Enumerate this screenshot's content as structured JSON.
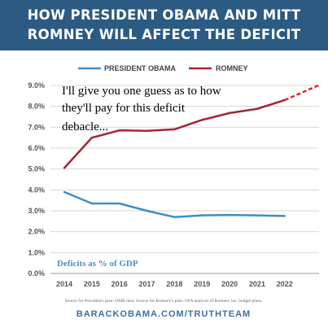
{
  "header": {
    "line1": "HOW PRESIDENT OBAMA AND MITT",
    "line2": "ROMNEY WILL AFFECT THE DEFICIT"
  },
  "annotation": {
    "line1": "I'll give you one guess as to how",
    "line2": "they'll pay for this deficit",
    "line3": "debacle..."
  },
  "source_note": "Source for President's plan: OMB data. Source for Romney's plan: OFA analysis of Romney tax, budget plans.",
  "footer": "BARACKOBAMA.COM/TRUTHTEAM",
  "colors": {
    "header_bg": "#2b5a82",
    "obama": "#3d8fc4",
    "romney": "#a52335",
    "grid": "#d7d7d7"
  },
  "chart_data": {
    "type": "line",
    "inner_label": "Deficits as % of GDP",
    "x": [
      "2014",
      "2015",
      "2016",
      "2017",
      "2018",
      "2019",
      "2020",
      "2021",
      "2022"
    ],
    "yticks": [
      "0.0%",
      "1.0%",
      "2.0%",
      "3.0%",
      "4.0%",
      "5.0%",
      "6.0%",
      "7.0%",
      "8.0%",
      "9.0%"
    ],
    "ylim": [
      0,
      9
    ],
    "grid": true,
    "legend_placement": "top",
    "series": [
      {
        "name": "PRESIDENT OBAMA",
        "color": "#3d8fc4",
        "values": [
          3.9,
          3.35,
          3.35,
          3.0,
          2.7,
          2.78,
          2.8,
          2.78,
          2.75
        ]
      },
      {
        "name": "ROMNEY",
        "color": "#a52335",
        "values": [
          5.05,
          6.5,
          6.85,
          6.83,
          6.9,
          7.35,
          7.68,
          7.88,
          8.3
        ],
        "dashed_extension": 9.0
      }
    ]
  }
}
